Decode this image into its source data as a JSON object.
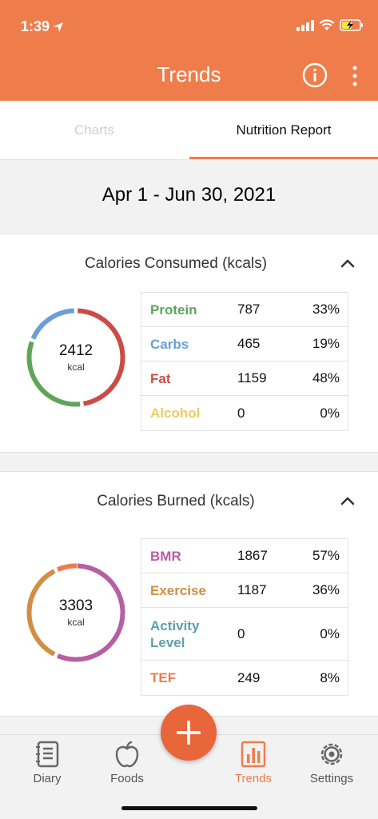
{
  "status": {
    "time": "1:39"
  },
  "header": {
    "title": "Trends"
  },
  "tabs": [
    {
      "label": "Charts",
      "active": false
    },
    {
      "label": "Nutrition Report",
      "active": true
    }
  ],
  "date_range": "Apr 1 - Jun 30, 2021",
  "consumed": {
    "title": "Calories Consumed (kcals)",
    "total": "2412",
    "unit": "kcal",
    "rows": [
      {
        "name": "Protein",
        "value": "787",
        "pct": "33%",
        "color": "#5ea55a",
        "fraction": 0.33
      },
      {
        "name": "Carbs",
        "value": "465",
        "pct": "19%",
        "color": "#6a9fd8",
        "fraction": 0.19
      },
      {
        "name": "Fat",
        "value": "1159",
        "pct": "48%",
        "color": "#cc4b45",
        "fraction": 0.48
      },
      {
        "name": "Alcohol",
        "value": "0",
        "pct": "0%",
        "color": "#eccb62",
        "fraction": 0
      }
    ]
  },
  "burned": {
    "title": "Calories Burned (kcals)",
    "total": "3303",
    "unit": "kcal",
    "rows": [
      {
        "name": "BMR",
        "value": "1867",
        "pct": "57%",
        "color": "#b65fa4",
        "fraction": 0.57
      },
      {
        "name": "Exercise",
        "value": "1187",
        "pct": "36%",
        "color": "#d18e45",
        "fraction": 0.36
      },
      {
        "name": "Activity Level",
        "value": "0",
        "pct": "0%",
        "color": "#5d9fab",
        "fraction": 0
      },
      {
        "name": "TEF",
        "value": "249",
        "pct": "8%",
        "color": "#ec7b4e",
        "fraction": 0.08
      }
    ]
  },
  "nav": [
    {
      "label": "Diary",
      "icon": "diary-icon",
      "active": false
    },
    {
      "label": "Foods",
      "icon": "apple-icon",
      "active": false
    },
    {
      "label": "Trends",
      "icon": "bar-chart-icon",
      "active": true
    },
    {
      "label": "Settings",
      "icon": "gear-icon",
      "active": false
    }
  ],
  "colors": {
    "accent": "#ef7d4b",
    "fab": "#e8663a"
  }
}
